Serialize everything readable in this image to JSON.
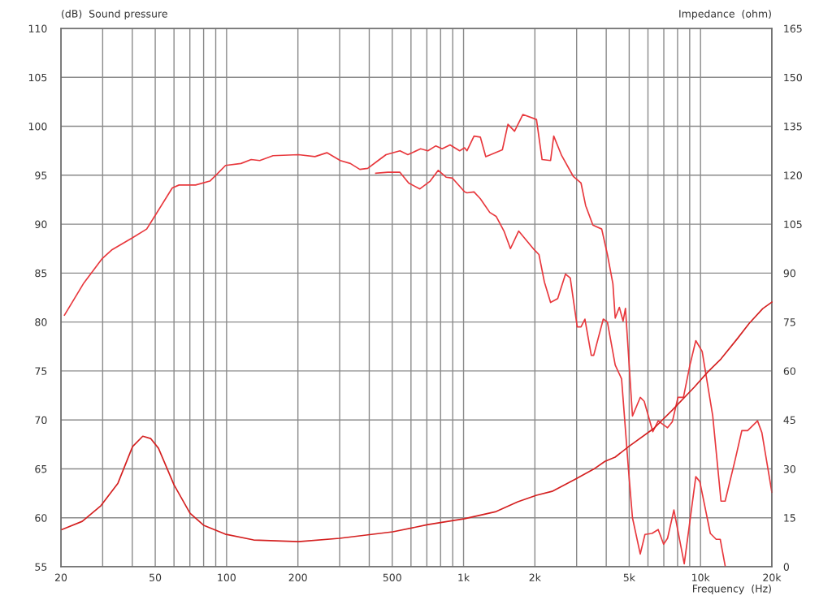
{
  "chart_data": {
    "type": "line",
    "xlabel": "Frequency  (Hz)",
    "ylabel": "(dB)  Sound pressure",
    "y2label": "Impedance  (ohm)",
    "log": "x",
    "grid": true,
    "marker": "none",
    "line_style": "solid",
    "xlim": [
      20,
      20000
    ],
    "ylim": [
      55,
      110
    ],
    "y2lim": [
      0,
      165
    ],
    "xticks": [
      20,
      {
        "value": 30,
        "label": null
      },
      {
        "value": 40,
        "label": null
      },
      50,
      {
        "value": 60,
        "label": null
      },
      {
        "value": 70,
        "label": null
      },
      {
        "value": 80,
        "label": null
      },
      {
        "value": 90,
        "label": null
      },
      100,
      200,
      {
        "value": 300,
        "label": null
      },
      {
        "value": 400,
        "label": null
      },
      500,
      {
        "value": 600,
        "label": null
      },
      {
        "value": 700,
        "label": null
      },
      {
        "value": 800,
        "label": null
      },
      {
        "value": 900,
        "label": null
      },
      {
        "value": 1000,
        "label": "1k"
      },
      {
        "value": 2000,
        "label": "2k"
      },
      {
        "value": 3000,
        "label": null
      },
      {
        "value": 4000,
        "label": null
      },
      {
        "value": 5000,
        "label": "5k"
      },
      {
        "value": 6000,
        "label": null
      },
      {
        "value": 7000,
        "label": null
      },
      {
        "value": 8000,
        "label": null
      },
      {
        "value": 9000,
        "label": null
      },
      {
        "value": 10000,
        "label": "10k"
      },
      {
        "value": 20000,
        "label": "20k"
      }
    ],
    "yticks": [
      55,
      60,
      65,
      70,
      75,
      80,
      85,
      90,
      95,
      100,
      105,
      110
    ],
    "y2ticks": [
      0,
      15,
      30,
      45,
      60,
      75,
      90,
      105,
      120,
      135,
      150,
      165
    ],
    "series": [
      {
        "color": "#e8383d",
        "x": [
          20.7,
          25,
          29.9,
          32.9,
          40,
          46,
          50,
          59,
          63,
          74,
          85,
          91,
          99,
          115,
          127,
          138,
          157,
          201,
          236,
          265,
          302,
          333,
          365,
          394,
          436,
          471,
          539,
          582,
          659,
          707,
          764,
          812,
          877,
          963,
          1010,
          1034,
          1107,
          1177,
          1241,
          1458,
          1539,
          1641,
          1779,
          2031,
          2145,
          2329,
          2402,
          2595,
          2901,
          3131,
          3275,
          3514,
          3828,
          4046,
          4268,
          4365,
          4544,
          4712,
          4822,
          5162,
          5567,
          5784,
          6290,
          6627,
          7258,
          7600,
          8030,
          8470,
          9020,
          9550,
          10160,
          11260,
          12200,
          12700,
          13990,
          14930,
          15800,
          17400,
          18150,
          20000
        ],
        "values": [
          80.7,
          84.0,
          86.5,
          87.4,
          88.6,
          89.5,
          90.9,
          93.7,
          94.0,
          94.0,
          94.4,
          95.1,
          96.0,
          96.2,
          96.6,
          96.5,
          97.0,
          97.1,
          96.9,
          97.3,
          96.5,
          96.2,
          95.6,
          95.7,
          96.5,
          97.1,
          97.5,
          97.1,
          97.7,
          97.5,
          98.0,
          97.7,
          98.1,
          97.5,
          97.8,
          97.5,
          99.0,
          98.9,
          96.9,
          97.6,
          100.2,
          99.5,
          101.2,
          100.7,
          96.6,
          96.5,
          99.0,
          97.0,
          94.9,
          94.2,
          91.9,
          89.9,
          89.5,
          86.9,
          83.9,
          80.4,
          81.5,
          80.1,
          81.4,
          70.4,
          72.3,
          71.9,
          68.8,
          69.9,
          69.2,
          69.8,
          72.3,
          72.3,
          75.6,
          78.1,
          77.0,
          70.4,
          61.7,
          61.7,
          65.9,
          68.9,
          68.9,
          69.9,
          68.7,
          62.6
        ]
      },
      {
        "color": "#e8383d",
        "x": [
          426,
          479,
          539,
          587,
          654,
          723,
          782,
          844,
          898,
          1010,
          1034,
          1107,
          1177,
          1290,
          1372,
          1481,
          1577,
          1708,
          1985,
          2080,
          2193,
          2329,
          2496,
          2693,
          2820,
          3018,
          3131,
          3252,
          3459,
          3541,
          3887,
          4046,
          4365,
          4643,
          4970,
          5162,
          5567,
          5828,
          6241,
          6627,
          6985,
          7258,
          7720,
          8536,
          9550,
          9930,
          11000,
          11640,
          12110,
          12700
        ],
        "values": [
          95.2,
          95.3,
          95.3,
          94.2,
          93.6,
          94.4,
          95.5,
          94.8,
          94.7,
          93.3,
          93.2,
          93.3,
          92.6,
          91.2,
          90.8,
          89.3,
          87.5,
          89.3,
          87.4,
          86.9,
          84.1,
          82.0,
          82.4,
          84.9,
          84.5,
          79.5,
          79.5,
          80.3,
          76.6,
          76.6,
          80.3,
          80.0,
          75.6,
          74.2,
          64.8,
          60.0,
          56.3,
          58.3,
          58.4,
          58.8,
          57.3,
          57.9,
          60.8,
          55.3,
          64.2,
          63.7,
          58.4,
          57.8,
          57.8,
          55.1
        ]
      },
      {
        "color": "#d42020",
        "axis": "y2",
        "x": [
          20.2,
          24.6,
          29.5,
          34.8,
          40.1,
          44.3,
          47.8,
          51.6,
          60,
          70.1,
          80,
          98.6,
          130,
          201,
          300,
          503,
          707,
          1010,
          1372,
          1695,
          2031,
          2365,
          2971,
          3541,
          3950,
          4365,
          4970,
          6379,
          7600,
          9400,
          10730,
          12200,
          14300,
          16050,
          18300,
          20000
        ],
        "values": [
          11.4,
          13.9,
          18.7,
          25.6,
          36.8,
          40.0,
          39.3,
          36.3,
          25.1,
          16.4,
          12.7,
          10.0,
          8.2,
          7.7,
          8.7,
          10.7,
          12.9,
          14.7,
          16.9,
          19.9,
          21.9,
          23.1,
          26.9,
          29.9,
          32.3,
          33.6,
          36.8,
          42.5,
          48.0,
          55.0,
          59.7,
          63.7,
          69.9,
          74.6,
          79.1,
          81.1
        ]
      }
    ]
  }
}
